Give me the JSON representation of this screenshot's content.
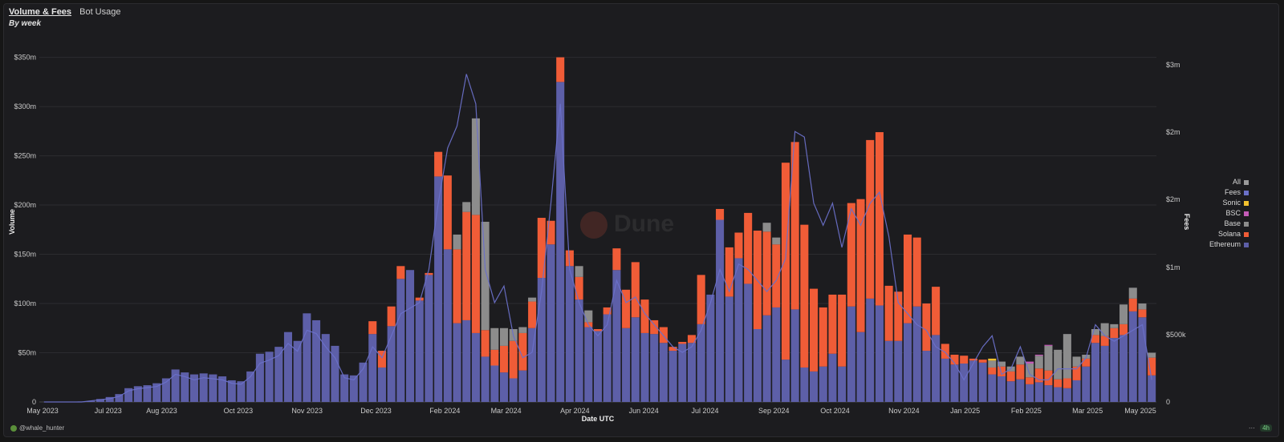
{
  "header": {
    "tabs": [
      "Volume & Fees",
      "Bot Usage"
    ],
    "subtitle": "By week"
  },
  "watermark": "Dune",
  "footer": {
    "author": "@whale_hunter",
    "more": "···",
    "age": "4h"
  },
  "colors": {
    "ethereum": "#5d5fa8",
    "solana": "#f05c37",
    "base": "#8c8c8c",
    "bsc": "#c45bb7",
    "sonic": "#f2c12e",
    "fees": "#6a70c8",
    "all": "#9a9a9a"
  },
  "legend": [
    {
      "label": "All",
      "color": "#9a9a9a"
    },
    {
      "label": "Fees",
      "color": "#6a70c8"
    },
    {
      "label": "Sonic",
      "color": "#f2c12e"
    },
    {
      "label": "BSC",
      "color": "#c45bb7"
    },
    {
      "label": "Base",
      "color": "#8c8c8c"
    },
    {
      "label": "Solana",
      "color": "#f05c37"
    },
    {
      "label": "Ethereum",
      "color": "#5d5fa8"
    }
  ],
  "chart_data": {
    "type": "bar",
    "stacked": true,
    "xlabel": "Date UTC",
    "ylabel": "Volume",
    "y2label": "Fees",
    "ylim": [
      0,
      370
    ],
    "y2lim": [
      0,
      3.3
    ],
    "yticks": [
      "0",
      "$50m",
      "$100m",
      "$150m",
      "$200m",
      "$250m",
      "$300m",
      "$350m"
    ],
    "y2ticks": [
      "0",
      "$500k",
      "$1m",
      "$2m",
      "$2m",
      "$3m"
    ],
    "xticks": [
      "May 2023",
      "Jul 2023",
      "Aug 2023",
      "Oct 2023",
      "Nov 2023",
      "Dec 2023",
      "Feb 2024",
      "Mar 2024",
      "Apr 2024",
      "Jun 2024",
      "Jul 2024",
      "Sep 2024",
      "Oct 2024",
      "Nov 2024",
      "Jan 2025",
      "Feb 2025",
      "Mar 2025",
      "May 2025"
    ],
    "units": "USD millions (bars), USD millions (fees line)",
    "series": [
      {
        "name": "Ethereum",
        "values": [
          0,
          0,
          0,
          0,
          0.5,
          1,
          3,
          5,
          8,
          14,
          16,
          17,
          19,
          24,
          33,
          30,
          28,
          29,
          28,
          26,
          22,
          21,
          31,
          49,
          51,
          56,
          71,
          62,
          90,
          83,
          69,
          57,
          28,
          27,
          40,
          69,
          35,
          77,
          125,
          134,
          103,
          129,
          229,
          155,
          80,
          83,
          70,
          46,
          37,
          30,
          24,
          32,
          75,
          126,
          160,
          325,
          138,
          104,
          76,
          72,
          89,
          134,
          75,
          86,
          70,
          69,
          60,
          52,
          59,
          60,
          79,
          109,
          185,
          107,
          146,
          120,
          74,
          88,
          96,
          43,
          94,
          35,
          31,
          36,
          49,
          36,
          97,
          71,
          105,
          98,
          62,
          62,
          80,
          97,
          52,
          68,
          44,
          38,
          39,
          42,
          40,
          28,
          26,
          21,
          23,
          18,
          20,
          17,
          15,
          14,
          22,
          36,
          60,
          57,
          65,
          68,
          92,
          86,
          27
        ]
      },
      {
        "name": "Solana",
        "values": [
          0,
          0,
          0,
          0,
          0,
          0,
          0,
          0,
          0,
          0,
          0,
          0,
          0,
          0,
          0,
          0,
          0,
          0,
          0,
          0,
          0,
          0,
          0,
          0,
          0,
          0,
          0,
          0,
          0,
          0,
          0,
          0,
          0,
          0,
          0,
          13,
          17,
          20,
          13,
          0,
          3,
          2,
          25,
          75,
          75,
          110,
          120,
          27,
          16,
          27,
          38,
          38,
          27,
          61,
          24,
          25,
          16,
          23,
          5,
          2,
          7,
          22,
          39,
          56,
          34,
          14,
          16,
          4,
          2,
          8,
          50,
          0,
          11,
          50,
          26,
          72,
          100,
          85,
          64,
          200,
          170,
          145,
          84,
          60,
          60,
          73,
          105,
          135,
          161,
          176,
          56,
          50,
          90,
          70,
          48,
          49,
          15,
          10,
          8,
          2,
          3,
          7,
          10,
          10,
          15,
          7,
          14,
          15,
          8,
          10,
          14,
          8,
          8,
          10,
          10,
          11,
          13,
          8,
          18
        ]
      },
      {
        "name": "Base",
        "values": [
          0,
          0,
          0,
          0,
          0,
          0,
          0,
          0,
          0,
          0,
          0,
          0,
          0,
          0,
          0,
          0,
          0,
          0,
          0,
          0,
          0,
          0,
          0,
          0,
          0,
          0,
          0,
          0,
          0,
          0,
          0,
          0,
          0,
          0,
          0,
          0,
          0,
          0,
          0,
          0,
          0,
          0,
          0,
          0,
          15,
          10,
          98,
          110,
          22,
          18,
          12,
          6,
          4,
          0,
          0,
          0,
          0,
          11,
          12,
          0,
          0,
          0,
          0,
          0,
          0,
          0,
          0,
          0,
          0,
          0,
          0,
          0,
          0,
          0,
          0,
          0,
          0,
          9,
          7,
          0,
          0,
          0,
          0,
          0,
          0,
          0,
          0,
          0,
          0,
          0,
          0,
          0,
          0,
          0,
          0,
          0,
          0,
          0,
          0,
          0,
          0,
          7,
          5,
          5,
          8,
          14,
          13,
          25,
          30,
          45,
          10,
          4,
          6,
          13,
          4,
          20,
          11,
          6,
          5
        ]
      },
      {
        "name": "BSC",
        "values": [
          0,
          0,
          0,
          0,
          0,
          0,
          0,
          0,
          0,
          0,
          0,
          0,
          0,
          0,
          0,
          0,
          0,
          0,
          0,
          0,
          0,
          0,
          0,
          0,
          0,
          0,
          0,
          0,
          0,
          0,
          0,
          0,
          0,
          0,
          0,
          0,
          0,
          0,
          0,
          0,
          0,
          0,
          0,
          0,
          0,
          0,
          0,
          0,
          0,
          0,
          0,
          0,
          0,
          0,
          0,
          0,
          0,
          0,
          0,
          0,
          0,
          0,
          0,
          0,
          0,
          0,
          0,
          0,
          0,
          0,
          0,
          0,
          0,
          0,
          0,
          0,
          0,
          0,
          0,
          0,
          0,
          0,
          0,
          0,
          0,
          0,
          0,
          0,
          0,
          0,
          0,
          0,
          0,
          0,
          0,
          0,
          0,
          0,
          0,
          0,
          0,
          0,
          0,
          0,
          0,
          2,
          1,
          1,
          0,
          0,
          0,
          0,
          0,
          0,
          0,
          0,
          0,
          0,
          0
        ]
      },
      {
        "name": "Sonic",
        "values": [
          0,
          0,
          0,
          0,
          0,
          0,
          0,
          0,
          0,
          0,
          0,
          0,
          0,
          0,
          0,
          0,
          0,
          0,
          0,
          0,
          0,
          0,
          0,
          0,
          0,
          0,
          0,
          0,
          0,
          0,
          0,
          0,
          0,
          0,
          0,
          0,
          0,
          0,
          0,
          0,
          0,
          0,
          0,
          0,
          0,
          0,
          0,
          0,
          0,
          0,
          0,
          0,
          0,
          0,
          0,
          0,
          0,
          0,
          0,
          0,
          0,
          0,
          0,
          0,
          0,
          0,
          0,
          0,
          0,
          0,
          0,
          0,
          0,
          0,
          0,
          0,
          0,
          0,
          0,
          0,
          0,
          0,
          0,
          0,
          0,
          0,
          0,
          0,
          0,
          0,
          0,
          0,
          0,
          0,
          0,
          0,
          0,
          0,
          0,
          0,
          0,
          2,
          0,
          0,
          0,
          0,
          0,
          0,
          0,
          0,
          0,
          0,
          0,
          0,
          0,
          0,
          0,
          0,
          0
        ]
      },
      {
        "name": "Fees",
        "values": [
          0,
          0,
          0,
          0,
          0,
          0.01,
          0.02,
          0.03,
          0.05,
          0.1,
          0.12,
          0.13,
          0.14,
          0.18,
          0.25,
          0.23,
          0.2,
          0.22,
          0.21,
          0.2,
          0.17,
          0.16,
          0.23,
          0.35,
          0.38,
          0.42,
          0.53,
          0.46,
          0.65,
          0.62,
          0.5,
          0.4,
          0.22,
          0.2,
          0.3,
          0.5,
          0.4,
          0.6,
          0.8,
          0.85,
          0.9,
          1.2,
          1.8,
          2.3,
          2.5,
          2.97,
          2.7,
          1.2,
          0.9,
          1.05,
          0.6,
          0.4,
          0.45,
          1.0,
          1.8,
          2.7,
          1.2,
          0.9,
          0.7,
          0.6,
          0.7,
          1.1,
          0.9,
          0.95,
          0.8,
          0.7,
          0.6,
          0.5,
          0.45,
          0.5,
          0.65,
          0.9,
          1.2,
          1.0,
          1.25,
          1.2,
          1.1,
          1.0,
          1.1,
          1.3,
          2.45,
          2.4,
          1.8,
          1.6,
          1.8,
          1.4,
          1.75,
          1.6,
          1.8,
          1.9,
          1.5,
          0.9,
          0.8,
          0.7,
          0.65,
          0.5,
          0.45,
          0.35,
          0.2,
          0.35,
          0.5,
          0.6,
          0.25,
          0.3,
          0.5,
          0.25,
          0.2,
          0.2,
          0.3,
          0.3,
          0.3,
          0.4,
          0.7,
          0.6,
          0.55,
          0.6,
          0.65,
          0.7,
          0.2
        ]
      }
    ]
  }
}
